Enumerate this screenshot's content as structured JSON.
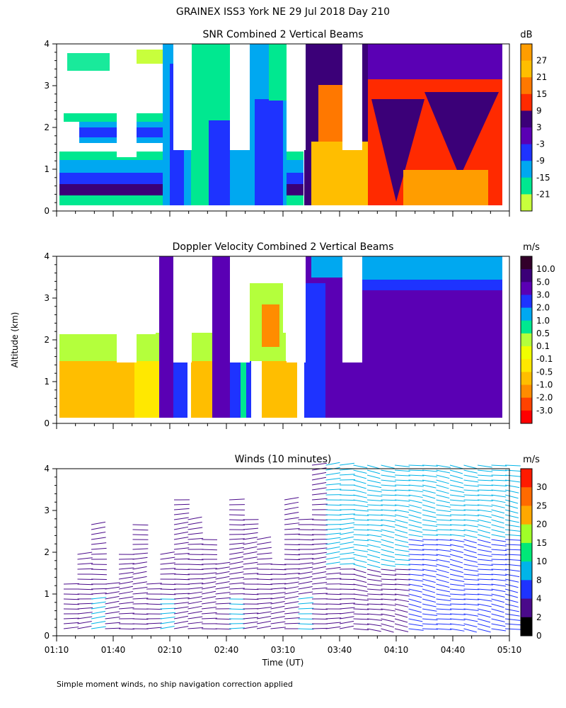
{
  "title": "GRAINEX ISS3 York NE  29 Jul 2018 Day 210",
  "footnote": "Simple moment winds, no ship navigation correction applied",
  "chart_data": [
    {
      "type": "heatmap",
      "title": "SNR Combined 2 Vertical Beams",
      "unit": "dB",
      "ylim": [
        0,
        4
      ],
      "yticks": [
        "0",
        "1",
        "2",
        "3",
        "4"
      ],
      "colorbar": {
        "labels": [
          "27",
          "21",
          "15",
          "9",
          "3",
          "-3",
          "-9",
          "-15",
          "-21"
        ],
        "colors": [
          "#ff9d00",
          "#ffbe00",
          "#ff7800",
          "#ff2a00",
          "#3b0078",
          "#5a00b4",
          "#1e33ff",
          "#00a8f0",
          "#00e890",
          "#c8ff3c"
        ]
      }
    },
    {
      "type": "heatmap",
      "title": "Doppler Velocity Combined 2 Vertical Beams",
      "unit": "m/s",
      "ylabel": "Altitude (km)",
      "ylim": [
        0,
        4
      ],
      "yticks": [
        "0",
        "1",
        "2",
        "3",
        "4"
      ],
      "colorbar": {
        "labels": [
          "10.0",
          "5.0",
          "3.0",
          "2.0",
          "1.0",
          "0.5",
          "0.1",
          "-0.1",
          "-0.5",
          "-1.0",
          "-2.0",
          "-3.0"
        ],
        "colors": [
          "#32002a",
          "#3b0078",
          "#5a00b4",
          "#1e33ff",
          "#00a8f0",
          "#00e890",
          "#b4ff3c",
          "#f0ff00",
          "#ffe800",
          "#ffbe00",
          "#ff8c00",
          "#ff4200",
          "#ff0000"
        ]
      }
    },
    {
      "type": "scatter",
      "title": "Winds (10 minutes)",
      "unit": "m/s",
      "xlabel": "Time (UT)",
      "ylim": [
        0,
        4
      ],
      "yticks": [
        "0",
        "1",
        "2",
        "3",
        "4"
      ],
      "xticks": [
        "01:10",
        "01:40",
        "02:10",
        "02:40",
        "03:10",
        "03:40",
        "04:10",
        "04:40",
        "05:10"
      ],
      "colorbar": {
        "labels": [
          "30",
          "25",
          "20",
          "15",
          "10",
          "8",
          "4",
          "2",
          "0"
        ],
        "colors": [
          "#ff1a00",
          "#ff6a00",
          "#ffa800",
          "#a0ff28",
          "#00e878",
          "#00b4e8",
          "#1e33ff",
          "#4a0a8a",
          "#000000"
        ]
      }
    }
  ]
}
